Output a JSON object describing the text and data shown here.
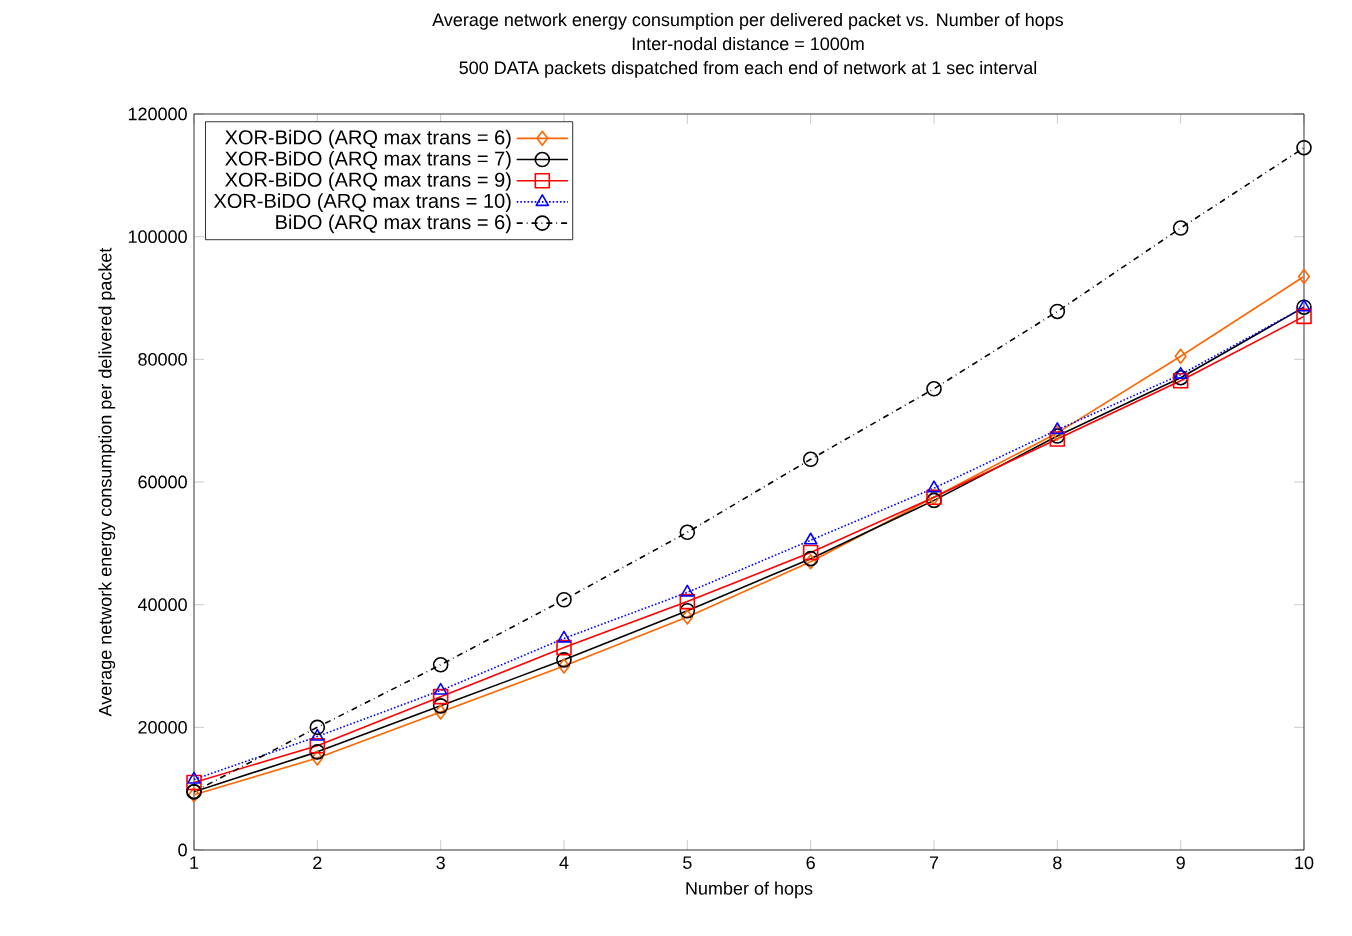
{
  "chart_data": {
    "type": "line",
    "title": "Average network energy consumption per delivered packet vs. Number of hops",
    "subtitle": "Inter-nodal distance = 1000m",
    "annotations": [
      "500 DATA packets dispatched from each end of network at 1 sec interval"
    ],
    "xlabel": "Number of hops",
    "ylabel": "Average network energy consumption per delivered packet",
    "x": [
      1,
      2,
      3,
      4,
      5,
      6,
      7,
      8,
      9,
      10
    ],
    "xlim": [
      1,
      10
    ],
    "xticks": [
      1,
      2,
      3,
      4,
      5,
      6,
      7,
      8,
      9,
      10
    ],
    "ylim": [
      0,
      120000
    ],
    "yticks": [
      0,
      20000,
      40000,
      60000,
      80000,
      100000,
      120000
    ],
    "grid": false,
    "legend": "top left",
    "series": [
      {
        "name": "XOR-BiDO (ARQ max trans = 6)",
        "color": "#ff6600",
        "marker": "diamond",
        "line_style": "solid",
        "values": [
          9000,
          15000,
          22500,
          30000,
          38000,
          47000,
          57500,
          68000,
          80500,
          93500
        ]
      },
      {
        "name": "XOR-BiDO (ARQ max trans = 7)",
        "color": "#000000",
        "marker": "circle",
        "line_style": "solid",
        "values": [
          9500,
          16000,
          23500,
          31000,
          39000,
          47500,
          57000,
          67500,
          77000,
          88500
        ]
      },
      {
        "name": "XOR-BiDO (ARQ max trans = 9)",
        "color": "#ff0000",
        "marker": "square",
        "line_style": "solid",
        "values": [
          11000,
          17000,
          25000,
          33000,
          40500,
          48500,
          57500,
          67000,
          76500,
          87000
        ]
      },
      {
        "name": "XOR-BiDO (ARQ max trans = 10)",
        "color": "#0000ff",
        "marker": "triangle",
        "line_style": "dotted",
        "values": [
          11500,
          18500,
          26000,
          34500,
          42000,
          50500,
          59000,
          68500,
          77500,
          88500
        ]
      },
      {
        "name": "BiDO (ARQ max trans = 6)",
        "color": "#000000",
        "marker": "circle",
        "line_style": "dashdot",
        "values": [
          9500,
          20000,
          30200,
          40800,
          51800,
          63700,
          75200,
          87800,
          101400,
          114500
        ]
      }
    ]
  }
}
